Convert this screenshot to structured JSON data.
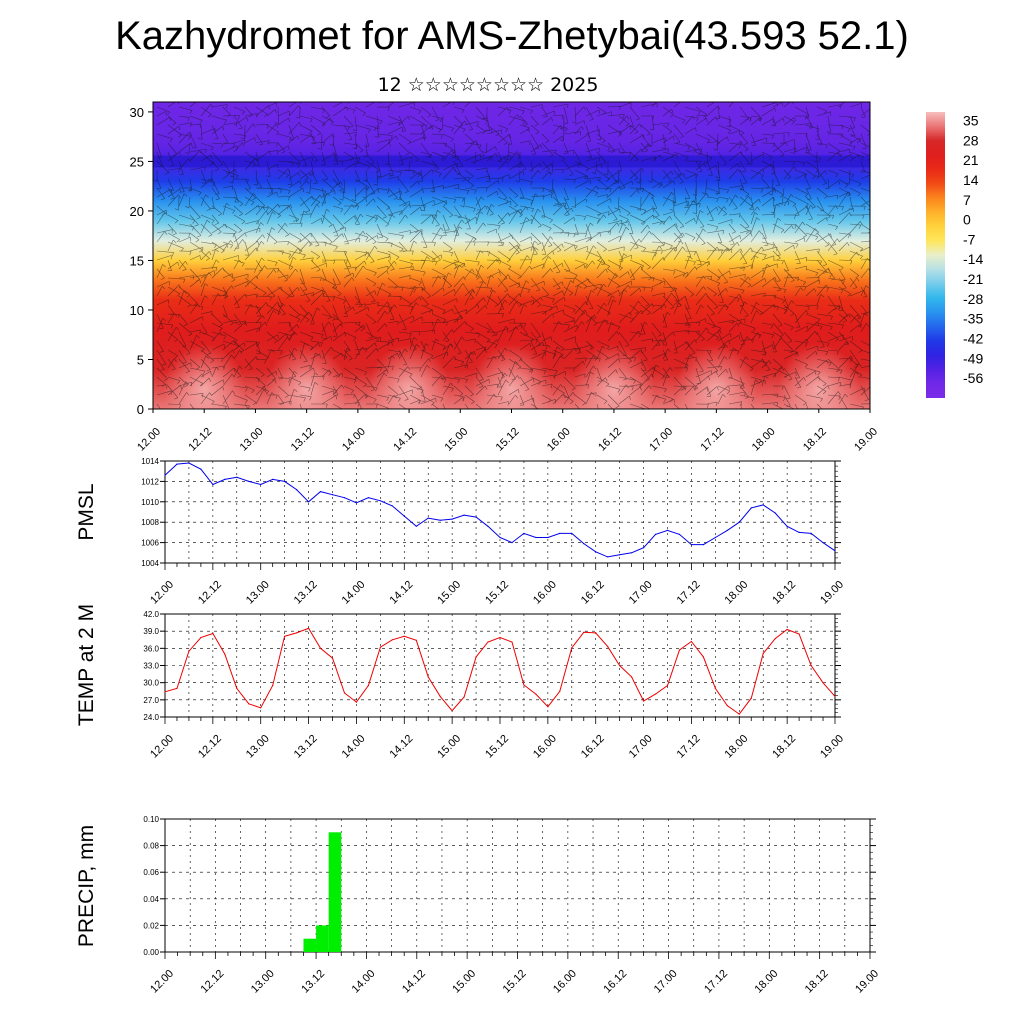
{
  "title": "Kazhydromet for AMS-Zhetybai(43.593 52.1)",
  "subtitle": "12 ☆☆☆☆☆☆☆☆ 2025",
  "time_ticks": [
    "12.00",
    "12.12",
    "13.00",
    "13.12",
    "14.00",
    "14.12",
    "15.00",
    "15.12",
    "16.00",
    "16.12",
    "17.00",
    "17.12",
    "18.00",
    "18.12",
    "19.00"
  ],
  "chart_data": [
    {
      "type": "heatmap",
      "title": "",
      "ylim": [
        0,
        31
      ],
      "yticks": [
        0,
        5,
        10,
        15,
        20,
        25,
        30
      ],
      "colorbar": {
        "labels": [
          "35",
          "28",
          "21",
          "14",
          "7",
          "0",
          "-7",
          "-14",
          "-21",
          "-28",
          "-35",
          "-42",
          "-49",
          "-56"
        ],
        "range": [
          -63,
          38
        ]
      },
      "temp_profile": [
        {
          "level": 0,
          "value": 33
        },
        {
          "level": 4,
          "value": 26
        },
        {
          "level": 8,
          "value": 22
        },
        {
          "level": 11,
          "value": 17
        },
        {
          "level": 13,
          "value": 9
        },
        {
          "level": 15,
          "value": -2
        },
        {
          "level": 17,
          "value": -14
        },
        {
          "level": 19,
          "value": -24
        },
        {
          "level": 21,
          "value": -33
        },
        {
          "level": 23,
          "value": -42
        },
        {
          "level": 25,
          "value": -52
        },
        {
          "level": 27,
          "value": -55
        },
        {
          "level": 31,
          "value": -57
        }
      ],
      "colors": {
        "warm": "#f39a9a",
        "red": "#e21a1a",
        "yellow": "#ffe24a",
        "cyan": "#2fb6ec",
        "blue": "#1a1ae8",
        "violet": "#7a2ce8"
      }
    },
    {
      "type": "line",
      "ylabel": "PMSL",
      "ylim": [
        1004,
        1014
      ],
      "yticks": [
        "1004",
        "1006",
        "1008",
        "1010",
        "1012",
        "1014"
      ],
      "color": "#0000ee",
      "x": [
        0,
        3,
        6,
        9,
        12,
        15,
        18,
        21,
        24,
        27,
        30,
        33,
        36,
        39,
        42,
        45,
        48,
        51,
        54,
        57,
        60,
        63,
        66,
        69,
        72,
        75,
        78,
        81,
        84,
        87,
        90,
        93,
        96,
        99,
        102,
        105,
        108,
        111,
        114,
        117,
        120,
        123,
        126,
        129,
        132,
        135,
        138,
        141,
        144,
        147,
        150,
        153,
        156,
        159,
        162,
        165,
        168
      ],
      "values": [
        1012.6,
        1013.7,
        1013.8,
        1013.2,
        1011.7,
        1012.2,
        1012.4,
        1012.0,
        1011.7,
        1012.2,
        1012.0,
        1011.2,
        1010.0,
        1011.0,
        1010.7,
        1010.4,
        1009.9,
        1010.4,
        1010.1,
        1009.6,
        1008.6,
        1007.6,
        1008.4,
        1008.2,
        1008.3,
        1008.7,
        1008.5,
        1007.6,
        1006.5,
        1006.0,
        1006.9,
        1006.5,
        1006.5,
        1006.9,
        1006.9,
        1005.9,
        1005.1,
        1004.6,
        1004.8,
        1005.0,
        1005.5,
        1006.8,
        1007.2,
        1006.8,
        1005.8,
        1005.8,
        1006.5,
        1007.2,
        1008.0,
        1009.4,
        1009.7,
        1008.9,
        1007.6,
        1007.0,
        1006.9,
        1006.0,
        1005.2
      ]
    },
    {
      "type": "line",
      "ylabel": "TEMP at 2 M",
      "ylim": [
        24,
        42
      ],
      "yticks": [
        "24.0",
        "27.0",
        "30.0",
        "33.0",
        "36.0",
        "39.0",
        "42.0"
      ],
      "color": "#ee0000",
      "x": [
        0,
        3,
        6,
        9,
        12,
        15,
        18,
        21,
        24,
        27,
        30,
        33,
        36,
        39,
        42,
        45,
        48,
        51,
        54,
        57,
        60,
        63,
        66,
        69,
        72,
        75,
        78,
        81,
        84,
        87,
        90,
        93,
        96,
        99,
        102,
        105,
        108,
        111,
        114,
        117,
        120,
        123,
        126,
        129,
        132,
        135,
        138,
        141,
        144,
        147,
        150,
        153,
        156,
        159,
        162,
        165,
        168
      ],
      "values": [
        28.4,
        29.0,
        35.5,
        37.9,
        38.6,
        35.0,
        29.0,
        26.3,
        25.6,
        29.5,
        38.1,
        38.7,
        39.5,
        36.0,
        34.3,
        28.2,
        26.6,
        29.5,
        36.2,
        37.5,
        38.1,
        37.4,
        31.0,
        27.6,
        25.1,
        27.5,
        34.5,
        37.1,
        37.9,
        37.1,
        29.6,
        28.0,
        25.8,
        28.5,
        36.1,
        38.8,
        38.7,
        36.3,
        33.0,
        31.0,
        26.8,
        28.0,
        29.5,
        35.7,
        37.2,
        34.5,
        29.0,
        26.0,
        24.5,
        27.3,
        35.1,
        37.7,
        39.3,
        38.5,
        33.0,
        30.0,
        27.6
      ]
    },
    {
      "type": "bar",
      "ylabel": "PRECIP, mm",
      "ylim": [
        0,
        0.1
      ],
      "yticks": [
        "0.00",
        "0.02",
        "0.04",
        "0.06",
        "0.08",
        "0.10"
      ],
      "color": "#00ee00",
      "bars": [
        {
          "start": 33,
          "end": 36,
          "value": 0.01
        },
        {
          "start": 36,
          "end": 39,
          "value": 0.02
        },
        {
          "start": 39,
          "end": 42,
          "value": 0.09
        }
      ]
    }
  ]
}
